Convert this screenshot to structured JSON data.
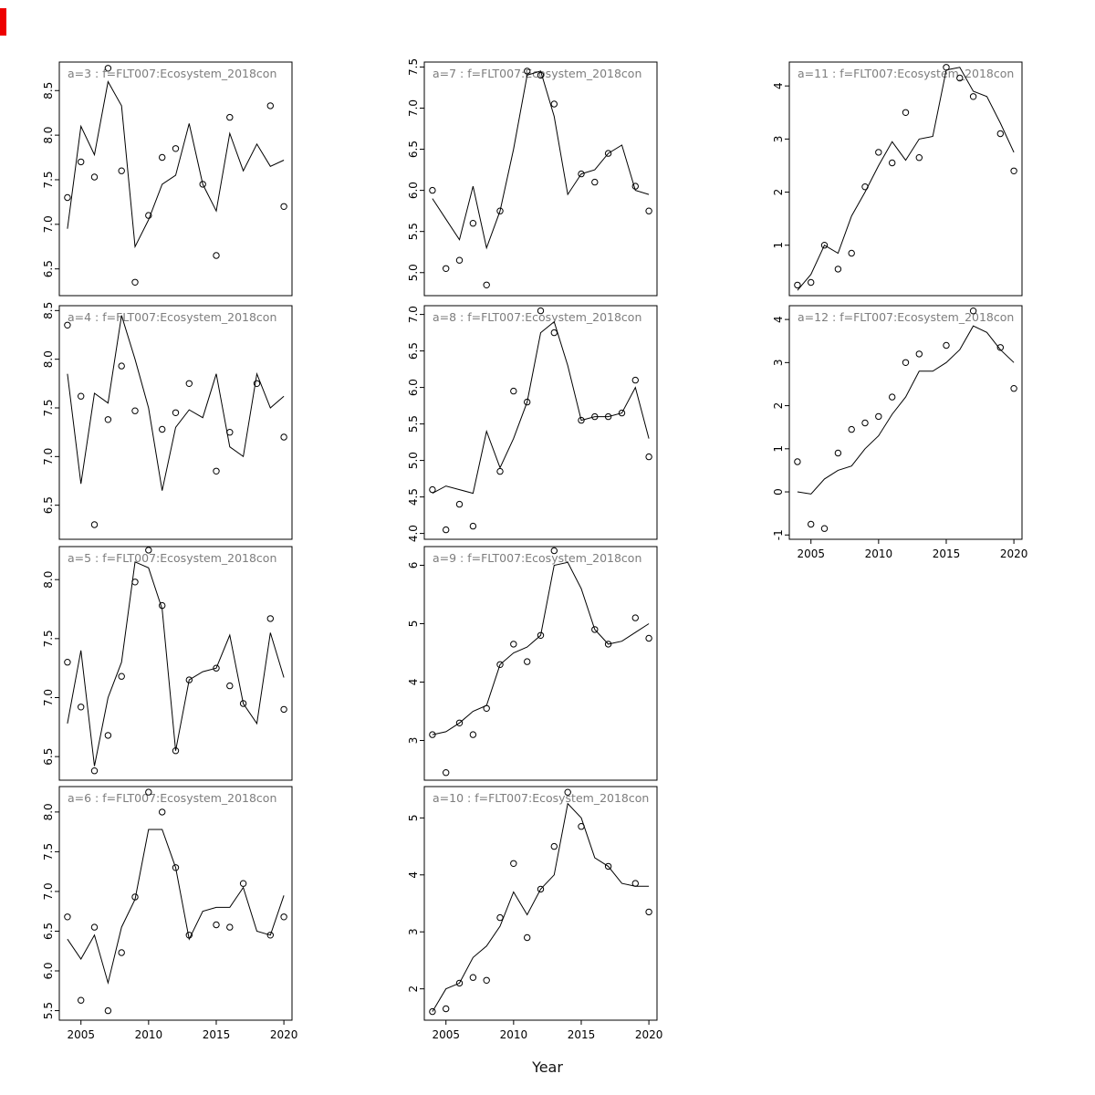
{
  "figure": {
    "xlabel": "Year",
    "background_color": "#ffffff",
    "line_color": "#000000",
    "point_color": "#000000",
    "title_color": "#7d7d7d",
    "axis_color": "#000000"
  },
  "chart_data": [
    {
      "panel": "a=3",
      "title": "a=3  :  f=FLT007:Ecosystem_2018con",
      "type": "line",
      "series_names": [
        "observed_points",
        "fitted_line"
      ],
      "x": [
        2004,
        2005,
        2006,
        2007,
        2008,
        2009,
        2010,
        2011,
        2012,
        2013,
        2014,
        2015,
        2016,
        2017,
        2018,
        2019,
        2020
      ],
      "xlim": [
        2003.4,
        2020.6
      ],
      "xticks": [
        2005,
        2010,
        2015,
        2020
      ],
      "ylim": [
        6.2,
        8.82
      ],
      "yticks": [
        "6.5",
        "7.0",
        "7.5",
        "8.0",
        "8.5"
      ],
      "points": [
        7.3,
        7.7,
        7.53,
        8.75,
        7.6,
        6.35,
        7.1,
        7.75,
        7.85,
        null,
        7.45,
        6.65,
        8.2,
        null,
        null,
        8.33,
        7.2
      ],
      "line": [
        6.95,
        8.1,
        7.78,
        8.6,
        8.33,
        6.75,
        7.05,
        7.45,
        7.55,
        8.13,
        7.45,
        7.15,
        8.02,
        7.6,
        7.9,
        7.65,
        7.72
      ],
      "grid": {
        "col": 0,
        "row": 0
      },
      "show_x_axis": false
    },
    {
      "panel": "a=4",
      "title": "a=4  :  f=FLT007:Ecosystem_2018con",
      "type": "line",
      "series_names": [
        "observed_points",
        "fitted_line"
      ],
      "x": [
        2004,
        2005,
        2006,
        2007,
        2008,
        2009,
        2010,
        2011,
        2012,
        2013,
        2014,
        2015,
        2016,
        2017,
        2018,
        2019,
        2020
      ],
      "xlim": [
        2003.4,
        2020.6
      ],
      "xticks": [
        2005,
        2010,
        2015,
        2020
      ],
      "ylim": [
        6.15,
        8.55
      ],
      "yticks": [
        "6.5",
        "7.0",
        "7.5",
        "8.0",
        "8.5"
      ],
      "points": [
        8.35,
        7.62,
        6.3,
        7.38,
        7.93,
        7.47,
        null,
        7.28,
        7.45,
        7.75,
        null,
        6.85,
        7.25,
        null,
        7.75,
        null,
        7.2
      ],
      "line": [
        7.85,
        6.72,
        7.65,
        7.55,
        8.45,
        8.0,
        7.5,
        6.65,
        7.3,
        7.48,
        7.4,
        7.85,
        7.1,
        7.0,
        7.85,
        7.5,
        7.62
      ],
      "grid": {
        "col": 0,
        "row": 1
      },
      "show_x_axis": false
    },
    {
      "panel": "a=5",
      "title": "a=5  :  f=FLT007:Ecosystem_2018con",
      "type": "line",
      "series_names": [
        "observed_points",
        "fitted_line"
      ],
      "x": [
        2004,
        2005,
        2006,
        2007,
        2008,
        2009,
        2010,
        2011,
        2012,
        2013,
        2014,
        2015,
        2016,
        2017,
        2018,
        2019,
        2020
      ],
      "xlim": [
        2003.4,
        2020.6
      ],
      "xticks": [
        2005,
        2010,
        2015,
        2020
      ],
      "ylim": [
        6.3,
        8.28
      ],
      "yticks": [
        "6.5",
        "7.0",
        "7.5",
        "8.0"
      ],
      "points": [
        7.3,
        6.92,
        6.38,
        6.68,
        7.18,
        7.98,
        8.25,
        7.78,
        6.55,
        7.15,
        null,
        7.25,
        7.1,
        6.95,
        null,
        7.67,
        6.9
      ],
      "line": [
        6.78,
        7.4,
        6.42,
        7.0,
        7.3,
        8.15,
        8.1,
        7.75,
        6.55,
        7.15,
        7.22,
        7.25,
        7.53,
        6.95,
        6.78,
        7.55,
        7.17
      ],
      "grid": {
        "col": 0,
        "row": 2
      },
      "show_x_axis": false
    },
    {
      "panel": "a=6",
      "title": "a=6  :  f=FLT007:Ecosystem_2018con",
      "type": "line",
      "series_names": [
        "observed_points",
        "fitted_line"
      ],
      "x": [
        2004,
        2005,
        2006,
        2007,
        2008,
        2009,
        2010,
        2011,
        2012,
        2013,
        2014,
        2015,
        2016,
        2017,
        2018,
        2019,
        2020
      ],
      "xlim": [
        2003.4,
        2020.6
      ],
      "xticks": [
        2005,
        2010,
        2015,
        2020
      ],
      "ylim": [
        5.38,
        8.32
      ],
      "yticks": [
        "5.5",
        "6.0",
        "6.5",
        "7.0",
        "7.5",
        "8.0"
      ],
      "points": [
        6.68,
        5.63,
        6.55,
        5.5,
        6.23,
        6.93,
        8.25,
        8.0,
        7.3,
        6.45,
        null,
        6.58,
        6.55,
        7.1,
        null,
        6.45,
        6.68
      ],
      "line": [
        6.4,
        6.15,
        6.45,
        5.85,
        6.55,
        6.9,
        7.78,
        7.78,
        7.3,
        6.4,
        6.75,
        6.8,
        6.8,
        7.05,
        6.5,
        6.45,
        6.95
      ],
      "grid": {
        "col": 0,
        "row": 3
      },
      "show_x_axis": true
    },
    {
      "panel": "a=7",
      "title": "a=7  :  f=FLT007:Ecosystem_2018con",
      "type": "line",
      "series_names": [
        "observed_points",
        "fitted_line"
      ],
      "x": [
        2004,
        2005,
        2006,
        2007,
        2008,
        2009,
        2010,
        2011,
        2012,
        2013,
        2014,
        2015,
        2016,
        2017,
        2018,
        2019,
        2020
      ],
      "xlim": [
        2003.4,
        2020.6
      ],
      "xticks": [
        2005,
        2010,
        2015,
        2020
      ],
      "ylim": [
        4.72,
        7.56
      ],
      "yticks": [
        "5.0",
        "5.5",
        "6.0",
        "6.5",
        "7.0",
        "7.5"
      ],
      "points": [
        6.0,
        5.05,
        5.15,
        5.6,
        4.85,
        5.75,
        null,
        7.45,
        7.4,
        7.05,
        null,
        6.2,
        6.1,
        6.45,
        null,
        6.05,
        5.75
      ],
      "line": [
        5.9,
        5.65,
        5.4,
        6.05,
        5.3,
        5.75,
        6.5,
        7.4,
        7.45,
        6.9,
        5.95,
        6.2,
        6.25,
        6.45,
        6.55,
        6.0,
        5.95
      ],
      "grid": {
        "col": 1,
        "row": 0
      },
      "show_x_axis": false
    },
    {
      "panel": "a=8",
      "title": "a=8  :  f=FLT007:Ecosystem_2018con",
      "type": "line",
      "series_names": [
        "observed_points",
        "fitted_line"
      ],
      "x": [
        2004,
        2005,
        2006,
        2007,
        2008,
        2009,
        2010,
        2011,
        2012,
        2013,
        2014,
        2015,
        2016,
        2017,
        2018,
        2019,
        2020
      ],
      "xlim": [
        2003.4,
        2020.6
      ],
      "xticks": [
        2005,
        2010,
        2015,
        2020
      ],
      "ylim": [
        3.92,
        7.12
      ],
      "yticks": [
        "4.0",
        "4.5",
        "5.0",
        "5.5",
        "6.0",
        "6.5",
        "7.0"
      ],
      "points": [
        4.6,
        4.05,
        4.4,
        4.1,
        null,
        4.85,
        5.95,
        5.8,
        7.05,
        6.75,
        null,
        5.55,
        5.6,
        5.6,
        5.65,
        6.1,
        5.05
      ],
      "line": [
        4.55,
        4.65,
        4.6,
        4.55,
        5.4,
        4.9,
        5.3,
        5.8,
        6.75,
        6.9,
        6.3,
        5.55,
        5.6,
        5.6,
        5.65,
        6.0,
        5.3
      ],
      "grid": {
        "col": 1,
        "row": 1
      },
      "show_x_axis": false
    },
    {
      "panel": "a=9",
      "title": "a=9  :  f=FLT007:Ecosystem_2018con",
      "type": "line",
      "series_names": [
        "observed_points",
        "fitted_line"
      ],
      "x": [
        2004,
        2005,
        2006,
        2007,
        2008,
        2009,
        2010,
        2011,
        2012,
        2013,
        2014,
        2015,
        2016,
        2017,
        2018,
        2019,
        2020
      ],
      "xlim": [
        2003.4,
        2020.6
      ],
      "xticks": [
        2005,
        2010,
        2015,
        2020
      ],
      "ylim": [
        2.32,
        6.32
      ],
      "yticks": [
        "3",
        "4",
        "5",
        "6"
      ],
      "points": [
        3.1,
        2.45,
        3.3,
        3.1,
        3.55,
        4.3,
        4.65,
        4.35,
        4.8,
        6.25,
        null,
        null,
        4.9,
        4.65,
        null,
        5.1,
        4.75
      ],
      "line": [
        3.1,
        3.15,
        3.3,
        3.5,
        3.6,
        4.3,
        4.5,
        4.6,
        4.8,
        6.0,
        6.05,
        5.6,
        4.9,
        4.65,
        4.7,
        4.85,
        5.0
      ],
      "grid": {
        "col": 1,
        "row": 2
      },
      "show_x_axis": false
    },
    {
      "panel": "a=10",
      "title": "a=10  :  f=FLT007:Ecosystem_2018con",
      "type": "line",
      "series_names": [
        "observed_points",
        "fitted_line"
      ],
      "x": [
        2004,
        2005,
        2006,
        2007,
        2008,
        2009,
        2010,
        2011,
        2012,
        2013,
        2014,
        2015,
        2016,
        2017,
        2018,
        2019,
        2020
      ],
      "xlim": [
        2003.4,
        2020.6
      ],
      "xticks": [
        2005,
        2010,
        2015,
        2020
      ],
      "ylim": [
        1.45,
        5.55
      ],
      "yticks": [
        "2",
        "3",
        "4",
        "5"
      ],
      "points": [
        1.6,
        1.65,
        2.1,
        2.2,
        2.15,
        3.25,
        4.2,
        2.9,
        3.75,
        4.5,
        5.45,
        4.85,
        null,
        4.15,
        null,
        3.85,
        3.35
      ],
      "line": [
        1.6,
        2.0,
        2.1,
        2.55,
        2.75,
        3.1,
        3.7,
        3.3,
        3.75,
        4.0,
        5.25,
        5.0,
        4.3,
        4.15,
        3.85,
        3.8,
        3.8
      ],
      "grid": {
        "col": 1,
        "row": 3
      },
      "show_x_axis": true
    },
    {
      "panel": "a=11",
      "title": "a=11  :  f=FLT007:Ecosystem_2018con",
      "type": "line",
      "series_names": [
        "observed_points",
        "fitted_line"
      ],
      "x": [
        2004,
        2005,
        2006,
        2007,
        2008,
        2009,
        2010,
        2011,
        2012,
        2013,
        2014,
        2015,
        2016,
        2017,
        2018,
        2019,
        2020
      ],
      "xlim": [
        2003.4,
        2020.6
      ],
      "xticks": [
        2005,
        2010,
        2015,
        2020
      ],
      "ylim": [
        0.05,
        4.45
      ],
      "yticks": [
        "1",
        "2",
        "3",
        "4"
      ],
      "points": [
        0.25,
        0.3,
        1.0,
        0.55,
        0.85,
        2.1,
        2.75,
        2.55,
        3.5,
        2.65,
        null,
        4.35,
        4.15,
        3.8,
        null,
        3.1,
        2.4
      ],
      "line": [
        0.15,
        0.45,
        1.0,
        0.85,
        1.55,
        2.0,
        2.5,
        2.95,
        2.6,
        3.0,
        3.05,
        4.3,
        4.35,
        3.9,
        3.8,
        3.3,
        2.75
      ],
      "grid": {
        "col": 2,
        "row": 0
      },
      "show_x_axis": false
    },
    {
      "panel": "a=12",
      "title": "a=12  :  f=FLT007:Ecosystem_2018con",
      "type": "line",
      "series_names": [
        "observed_points",
        "fitted_line"
      ],
      "x": [
        2004,
        2005,
        2006,
        2007,
        2008,
        2009,
        2010,
        2011,
        2012,
        2013,
        2014,
        2015,
        2016,
        2017,
        2018,
        2019,
        2020
      ],
      "xlim": [
        2003.4,
        2020.6
      ],
      "xticks": [
        2005,
        2010,
        2015,
        2020
      ],
      "ylim": [
        -1.1,
        4.32
      ],
      "yticks": [
        "-1",
        "0",
        "1",
        "2",
        "3",
        "4"
      ],
      "points": [
        0.7,
        -0.75,
        -0.85,
        0.9,
        1.45,
        1.6,
        1.75,
        2.2,
        3.0,
        3.2,
        null,
        3.4,
        null,
        4.2,
        null,
        3.35,
        2.4
      ],
      "line": [
        0.0,
        -0.05,
        0.3,
        0.5,
        0.6,
        1.0,
        1.3,
        1.8,
        2.2,
        2.8,
        2.8,
        3.0,
        3.3,
        3.85,
        3.7,
        3.3,
        3.0
      ],
      "grid": {
        "col": 2,
        "row": 1
      },
      "show_x_axis": true
    }
  ]
}
